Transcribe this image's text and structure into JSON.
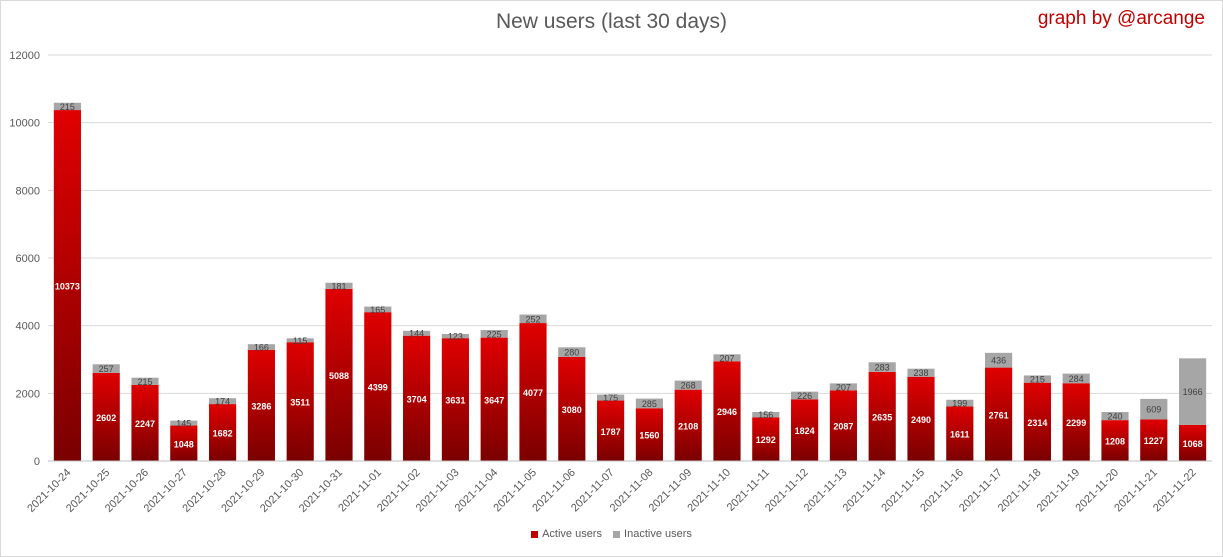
{
  "chart_data": {
    "type": "bar",
    "stacked": true,
    "title": "New users (last 30 days)",
    "credit": "graph by @arcange",
    "categories": [
      "2021-10-24",
      "2021-10-25",
      "2021-10-26",
      "2021-10-27",
      "2021-10-28",
      "2021-10-29",
      "2021-10-30",
      "2021-10-31",
      "2021-11-01",
      "2021-11-02",
      "2021-11-03",
      "2021-11-04",
      "2021-11-05",
      "2021-11-06",
      "2021-11-07",
      "2021-11-08",
      "2021-11-09",
      "2021-11-10",
      "2021-11-11",
      "2021-11-12",
      "2021-11-13",
      "2021-11-14",
      "2021-11-15",
      "2021-11-16",
      "2021-11-17",
      "2021-11-18",
      "2021-11-19",
      "2021-11-20",
      "2021-11-21",
      "2021-11-22"
    ],
    "series": [
      {
        "name": "Active users",
        "color": "#c00000",
        "values": [
          10373,
          2602,
          2247,
          1048,
          1682,
          3286,
          3511,
          5088,
          4399,
          3704,
          3631,
          3647,
          4077,
          3080,
          1787,
          1560,
          2108,
          2946,
          1292,
          1824,
          2087,
          2635,
          2490,
          1611,
          2761,
          2314,
          2299,
          1208,
          1227,
          1068
        ]
      },
      {
        "name": "Inactive users",
        "color": "#a6a6a6",
        "values": [
          215,
          257,
          215,
          145,
          174,
          166,
          115,
          181,
          165,
          144,
          123,
          225,
          252,
          280,
          175,
          285,
          268,
          207,
          156,
          226,
          207,
          283,
          238,
          199,
          436,
          215,
          284,
          240,
          609,
          1966
        ]
      }
    ],
    "ylim": [
      0,
      12000
    ],
    "yticks": [
      0,
      2000,
      4000,
      6000,
      8000,
      10000,
      12000
    ],
    "grid": true,
    "legend_position": "bottom"
  }
}
